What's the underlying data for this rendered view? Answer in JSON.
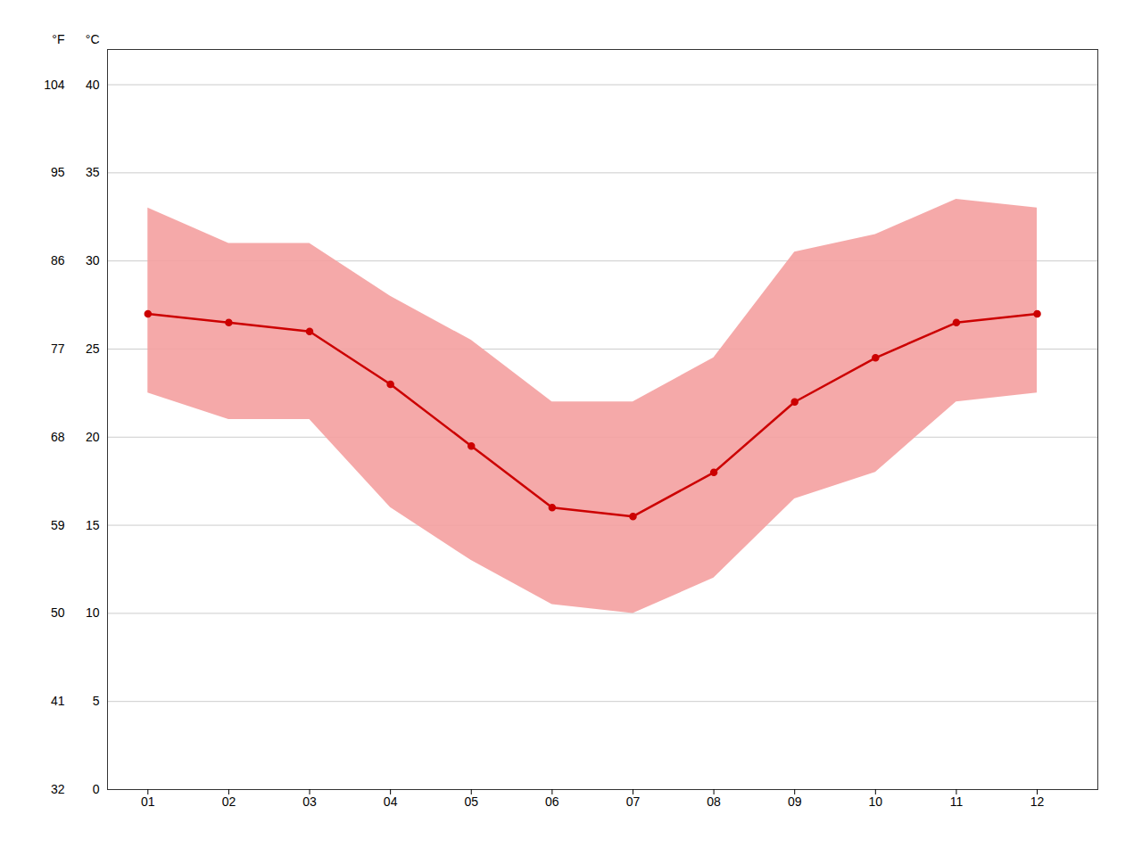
{
  "chart_data": {
    "type": "line",
    "x": [
      1,
      2,
      3,
      4,
      5,
      6,
      7,
      8,
      9,
      10,
      11,
      12
    ],
    "xlim": [
      0.5,
      12.75
    ],
    "xticks": [
      {
        "value": 1,
        "label": "01"
      },
      {
        "value": 2,
        "label": "02"
      },
      {
        "value": 3,
        "label": "03"
      },
      {
        "value": 4,
        "label": "04"
      },
      {
        "value": 5,
        "label": "05"
      },
      {
        "value": 6,
        "label": "06"
      },
      {
        "value": 7,
        "label": "07"
      },
      {
        "value": 8,
        "label": "08"
      },
      {
        "value": 9,
        "label": "09"
      },
      {
        "value": 10,
        "label": "10"
      },
      {
        "value": 11,
        "label": "11"
      },
      {
        "value": 12,
        "label": "12"
      }
    ],
    "ylabel": "°C",
    "ylim": [
      0,
      42
    ],
    "yticks": [
      0,
      5,
      10,
      15,
      20,
      25,
      30,
      35,
      40
    ],
    "y2label": "°F",
    "y2lim": [
      32,
      107.6
    ],
    "y2ticks": [
      32,
      41,
      50,
      59,
      68,
      77,
      86,
      95,
      104
    ],
    "grid": "y",
    "series": [
      {
        "type": "band",
        "color": "#f4a0a0",
        "low": [
          22.5,
          21.0,
          21.0,
          16.0,
          13.0,
          10.5,
          10.0,
          12.0,
          16.5,
          18.0,
          22.0,
          22.5
        ],
        "high": [
          33.0,
          31.0,
          31.0,
          28.0,
          25.5,
          22.0,
          22.0,
          24.5,
          30.5,
          31.5,
          33.5,
          33.0
        ]
      },
      {
        "type": "line",
        "color": "#cc0000",
        "marker": "o",
        "values": [
          27.0,
          26.5,
          26.0,
          23.0,
          19.5,
          16.0,
          15.5,
          18.0,
          22.0,
          24.5,
          26.5,
          27.0
        ]
      }
    ]
  }
}
